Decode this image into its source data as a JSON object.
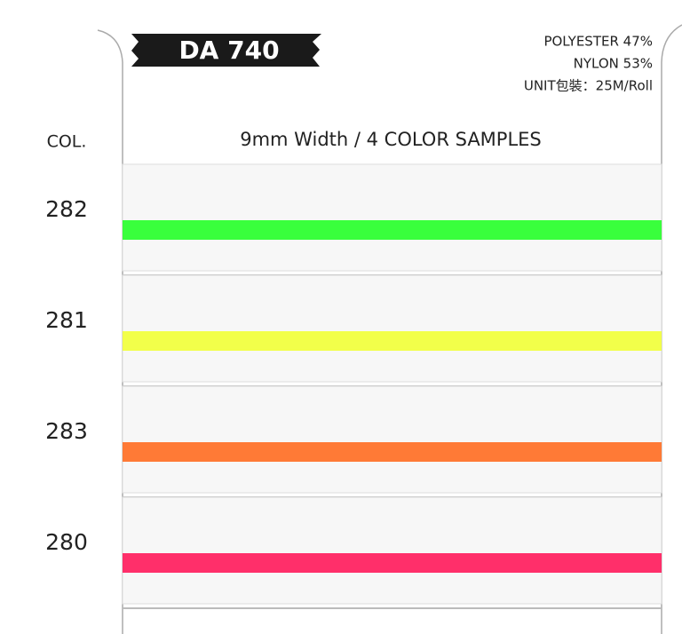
{
  "header": {
    "code": "DA 740",
    "composition": [
      "POLYESTER 47%",
      "NYLON 53%",
      "UNIT包裝：25M/Roll"
    ],
    "subtitle": "9mm Width  / 4 COLOR SAMPLES",
    "column_label": "COL."
  },
  "samples": [
    {
      "code": "282",
      "color": "#39ff3c"
    },
    {
      "code": "281",
      "color": "#f2ff4a"
    },
    {
      "code": "283",
      "color": "#ff7a36"
    },
    {
      "code": "280",
      "color": "#ff2f6a"
    }
  ]
}
